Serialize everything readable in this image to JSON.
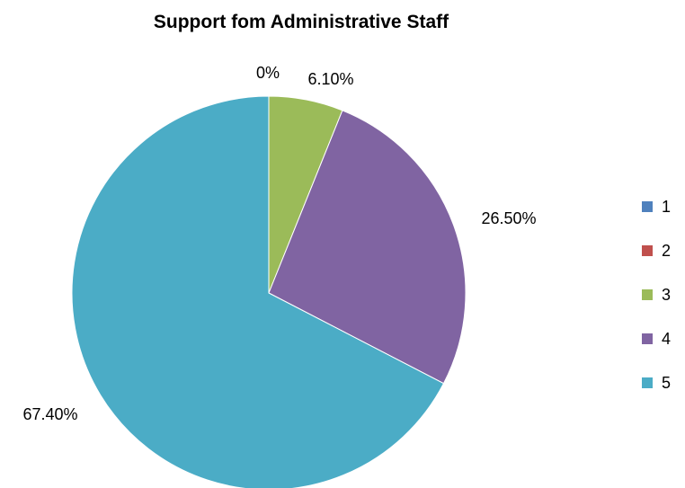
{
  "chart_data": {
    "type": "pie",
    "title": "Support fom Administrative Staff",
    "categories": [
      "1",
      "2",
      "3",
      "4",
      "5"
    ],
    "values": [
      0,
      0,
      6.1,
      26.5,
      67.4
    ],
    "data_labels": [
      "",
      "0%",
      "6.10%",
      "26.50%",
      "67.40%"
    ],
    "colors": [
      "#4F81BD",
      "#C0504D",
      "#9BBB59",
      "#8064A2",
      "#4BACC6"
    ],
    "start_angle_deg": 0,
    "direction": "clockwise",
    "legend_position": "right"
  }
}
